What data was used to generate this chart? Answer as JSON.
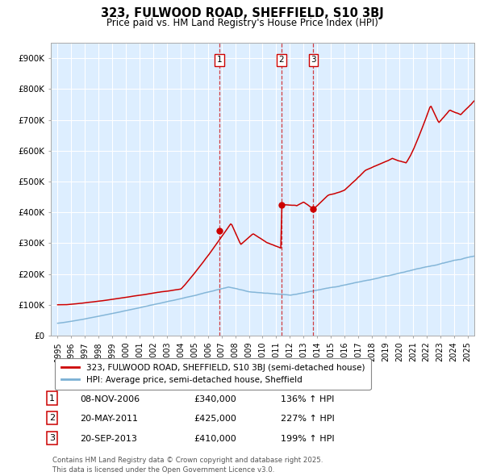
{
  "title": "323, FULWOOD ROAD, SHEFFIELD, S10 3BJ",
  "subtitle": "Price paid vs. HM Land Registry's House Price Index (HPI)",
  "legend_line1": "323, FULWOOD ROAD, SHEFFIELD, S10 3BJ (semi-detached house)",
  "legend_line2": "HPI: Average price, semi-detached house, Sheffield",
  "footer": "Contains HM Land Registry data © Crown copyright and database right 2025.\nThis data is licensed under the Open Government Licence v3.0.",
  "red_color": "#cc0000",
  "blue_color": "#7ab0d4",
  "bg_color": "#ddeeff",
  "grid_color": "#ffffff",
  "purchase_markers": [
    {
      "date_num": 2006.85,
      "price": 340000,
      "label": "1"
    },
    {
      "date_num": 2011.38,
      "price": 425000,
      "label": "2"
    },
    {
      "date_num": 2013.72,
      "price": 410000,
      "label": "3"
    }
  ],
  "purchase_table": [
    {
      "num": "1",
      "date": "08-NOV-2006",
      "price": "£340,000",
      "pct": "136% ↑ HPI"
    },
    {
      "num": "2",
      "date": "20-MAY-2011",
      "price": "£425,000",
      "pct": "227% ↑ HPI"
    },
    {
      "num": "3",
      "date": "20-SEP-2013",
      "price": "£410,000",
      "pct": "199% ↑ HPI"
    }
  ],
  "ylim": [
    0,
    950000
  ],
  "xlim": [
    1994.5,
    2025.5
  ],
  "ytick_vals": [
    0,
    100000,
    200000,
    300000,
    400000,
    500000,
    600000,
    700000,
    800000,
    900000
  ],
  "ytick_labels": [
    "£0",
    "£100K",
    "£200K",
    "£300K",
    "£400K",
    "£500K",
    "£600K",
    "£700K",
    "£800K",
    "£900K"
  ],
  "xtick_vals": [
    1995,
    1996,
    1997,
    1998,
    1999,
    2000,
    2001,
    2002,
    2003,
    2004,
    2005,
    2006,
    2007,
    2008,
    2009,
    2010,
    2011,
    2012,
    2013,
    2014,
    2015,
    2016,
    2017,
    2018,
    2019,
    2020,
    2021,
    2022,
    2023,
    2024,
    2025
  ],
  "xtick_labels": [
    "1995",
    "1996",
    "1997",
    "1998",
    "1999",
    "2000",
    "2001",
    "2002",
    "2003",
    "2004",
    "2005",
    "2006",
    "2007",
    "2008",
    "2009",
    "2010",
    "2011",
    "2012",
    "2013",
    "2014",
    "2015",
    "2016",
    "2017",
    "2018",
    "2019",
    "2020",
    "2021",
    "2022",
    "2023",
    "2024",
    "2025"
  ]
}
